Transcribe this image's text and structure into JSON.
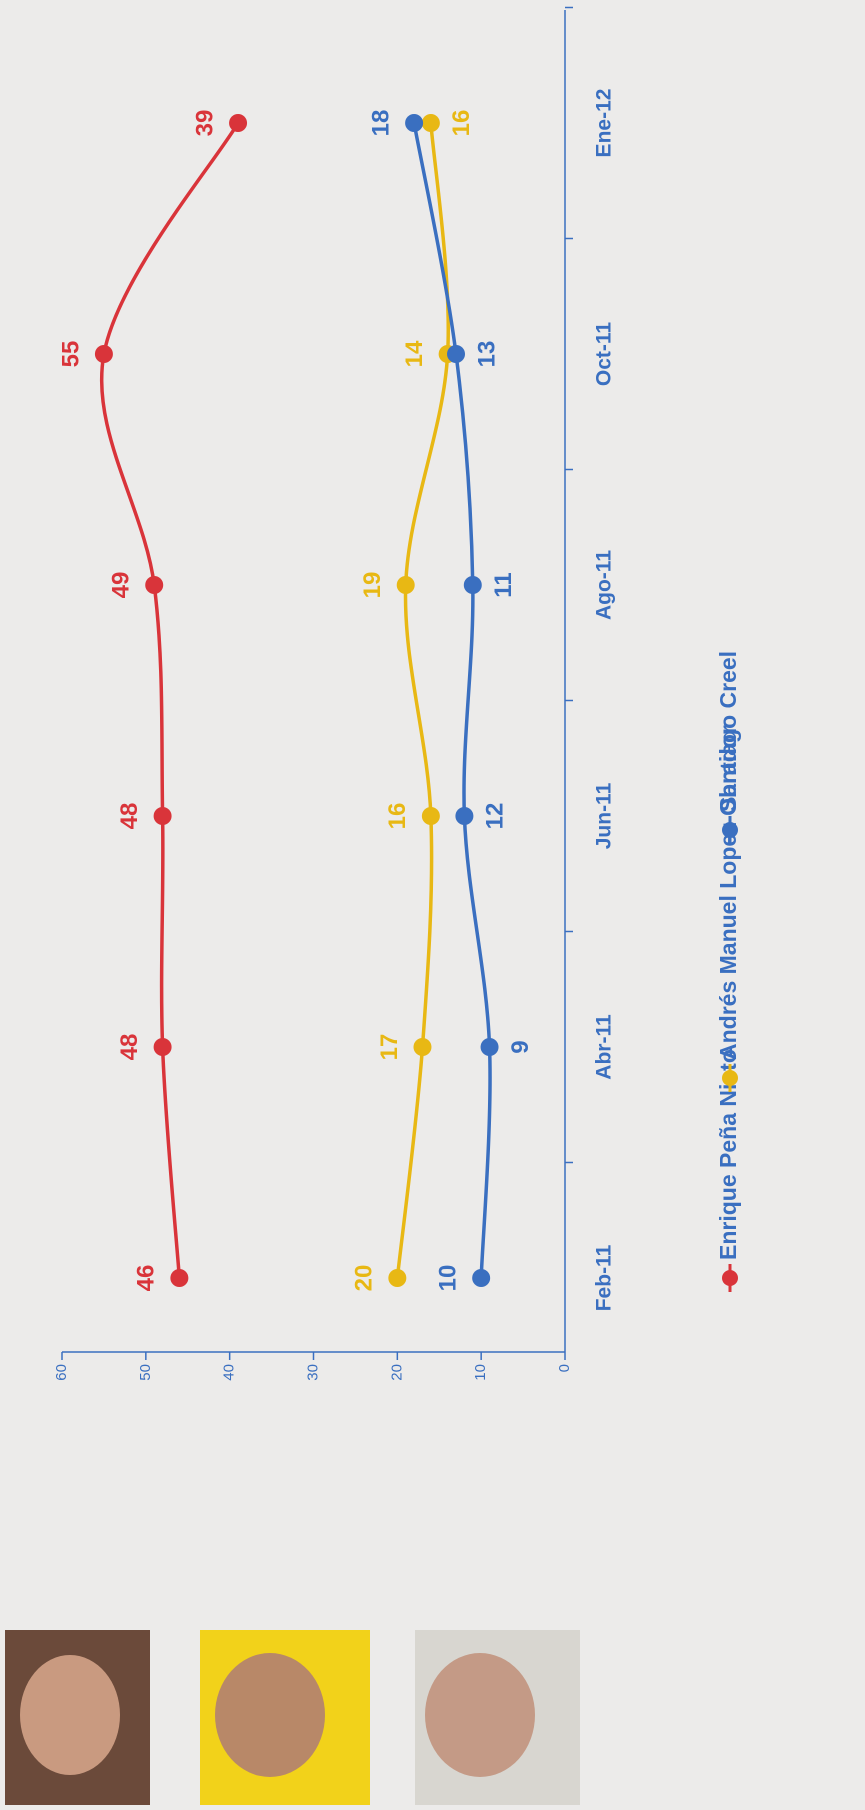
{
  "chart_data": {
    "type": "line",
    "categories": [
      "Feb-11",
      "Abr-11",
      "Jun-11",
      "Ago-11",
      "Oct-11",
      "Ene-12"
    ],
    "series": [
      {
        "name": "Enrique Peña Nieto",
        "color": "#d9343a",
        "values": [
          46,
          48,
          48,
          49,
          55,
          39
        ]
      },
      {
        "name": "Andrés Manuel Lopez Obrador",
        "color": "#e8b814",
        "values": [
          20,
          17,
          16,
          19,
          14,
          16
        ]
      },
      {
        "name": "Santiago Creel",
        "color": "#3a6fc0",
        "values": [
          10,
          9,
          12,
          11,
          13,
          18
        ]
      }
    ],
    "ylim": [
      0,
      60
    ],
    "yticks": [
      0,
      10,
      20,
      30,
      40,
      50,
      60
    ],
    "legend": "bottom"
  }
}
